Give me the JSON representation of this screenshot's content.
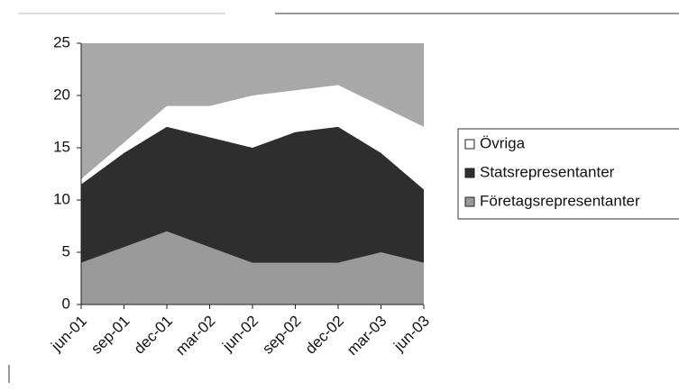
{
  "chart_data": {
    "type": "stacked-area",
    "categories": [
      "jun-01",
      "sep-01",
      "dec-01",
      "mar-02",
      "jun-02",
      "sep-02",
      "dec-02",
      "mar-03",
      "jun-03"
    ],
    "series": [
      {
        "name": "Övriga",
        "color": "#ffffff",
        "values": [
          0.5,
          1,
          2,
          3,
          5,
          4,
          4,
          4.5,
          6
        ]
      },
      {
        "name": "Statsrepresentanter",
        "color": "#2e2e2e",
        "values": [
          7.5,
          9,
          10,
          10.5,
          11,
          12.5,
          13,
          9.5,
          7
        ]
      },
      {
        "name": "Företagsrepresentanter",
        "color": "#9a9a9a",
        "values": [
          4,
          5.5,
          7,
          5.5,
          4,
          4,
          4,
          5,
          4
        ]
      }
    ],
    "ylim": [
      0,
      25
    ],
    "yticks": [
      0,
      5,
      10,
      15,
      20,
      25
    ],
    "plot_background": "#a8a8a8"
  }
}
